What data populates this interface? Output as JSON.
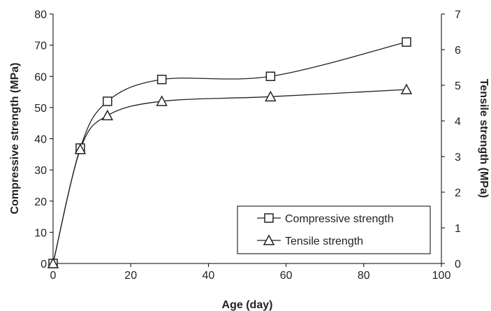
{
  "chart_data": {
    "type": "line",
    "title": "",
    "xlabel": "Age (day)",
    "ylabel": "Compressive strength (MPa)",
    "y2label": "Tensile strength (MPa)",
    "xlim": [
      0,
      100
    ],
    "ylim": [
      0,
      80
    ],
    "y2lim": [
      0,
      7
    ],
    "x_ticks": [
      0,
      20,
      40,
      60,
      80,
      100
    ],
    "y_ticks": [
      0,
      10,
      20,
      30,
      40,
      50,
      60,
      70,
      80
    ],
    "y2_ticks": [
      0,
      1,
      2,
      3,
      4,
      5,
      6,
      7
    ],
    "grid": false,
    "legend_position": "bottom-right",
    "series": [
      {
        "name": "Compressive strength",
        "axis": "left",
        "marker": "square",
        "x": [
          0,
          7,
          14,
          28,
          56,
          91
        ],
        "values": [
          0,
          37,
          52,
          59,
          60,
          71
        ]
      },
      {
        "name": "Tensile strength",
        "axis": "right",
        "marker": "triangle",
        "x": [
          0,
          7,
          14,
          28,
          56,
          91
        ],
        "values": [
          0,
          3.2,
          4.15,
          4.55,
          4.68,
          4.88
        ]
      }
    ],
    "colors": {
      "line": "#222222",
      "marker_fill": "#ffffff",
      "axis": "#000000"
    }
  }
}
